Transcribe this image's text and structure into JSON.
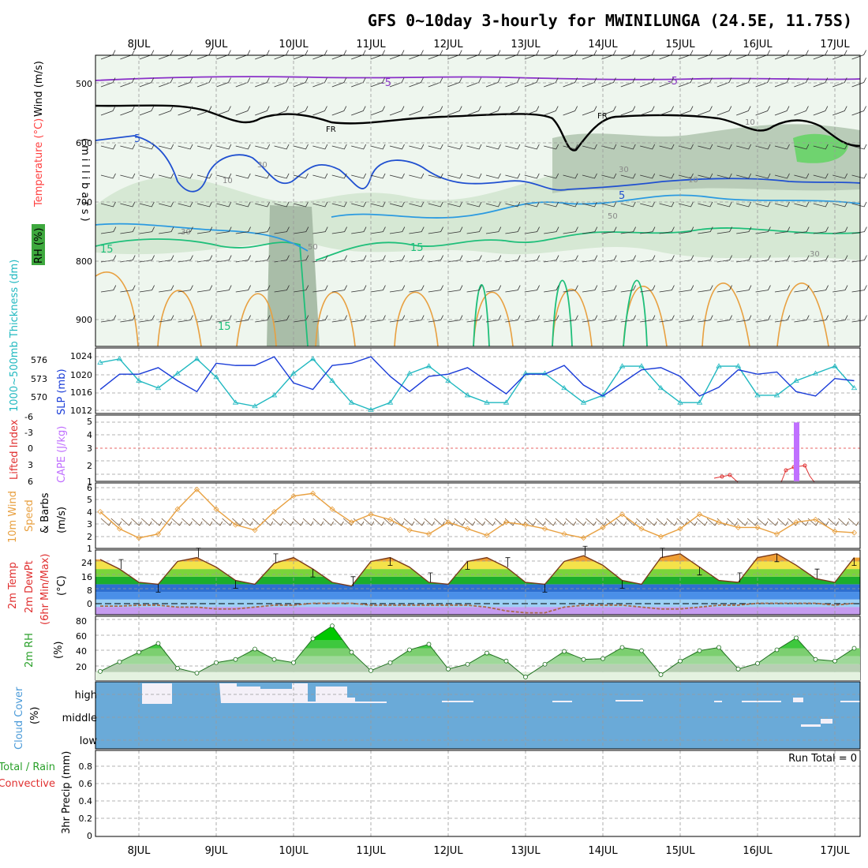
{
  "title": "GFS 0~10day 3-hourly for MWINILUNGA (24.5E, 11.75S)",
  "dates": [
    "8JUL",
    "9JUL",
    "10JUL",
    "11JUL",
    "12JUL",
    "13JUL",
    "14JUL",
    "15JUL",
    "16JUL",
    "17JUL"
  ],
  "colors": {
    "rh": "#3ea83e",
    "temperature": "#ff4040",
    "wind": "#000000",
    "slp": "#1a3cd8",
    "thickness": "#20b8c0",
    "cape": "#c070ff",
    "li": "#e03030",
    "wind10": "#e8a040",
    "rh2m": "#2aa02a",
    "cloud": "#6aaad8"
  },
  "panels": {
    "profile": {
      "ylabel_wind": "Wind (m/s)",
      "ylabel_temp": "Temperature (°C)",
      "ylabel_rh": "RH (%)",
      "ylabel_mb": "(millibars)",
      "yticks": [
        "500",
        "600",
        "700",
        "800",
        "900"
      ],
      "contour_labels": [
        "-5",
        "-5",
        "FR",
        "FR",
        "5",
        "5",
        "15",
        "15",
        "15",
        "30",
        "30",
        "10",
        "50",
        "10",
        "30",
        "30",
        "50",
        "10"
      ]
    },
    "slp": {
      "ylabel_thick": "1000~500mb Thickness (dm)",
      "ylabel_slp": "SLP (mb)",
      "thick_ticks": [
        "576",
        "573",
        "570"
      ],
      "slp_ticks": [
        "1024",
        "1020",
        "1016",
        "1012"
      ]
    },
    "cape": {
      "ylabel_li": "Lifted Index",
      "ylabel_cape": "CAPE (J/kg)",
      "li_ticks": [
        "-6",
        "-3",
        "0",
        "3",
        "6"
      ],
      "cape_ticks": [
        "5",
        "4",
        "3",
        "2",
        "1"
      ]
    },
    "wind10": {
      "ylabel1": "10m Wind",
      "ylabel2": "Speed",
      "ylabel3": "& Barbs",
      "unit": "(m/s)",
      "ticks": [
        "6",
        "5",
        "4",
        "3",
        "2",
        "1"
      ]
    },
    "temp2m": {
      "ylabel1": "2m Temp",
      "ylabel2": "2m DewPt",
      "ylabel3": "(6hr Min/Max)",
      "unit": "(°C)",
      "ticks": [
        "24",
        "16",
        "8",
        "0"
      ]
    },
    "rh2m": {
      "ylabel": "2m RH",
      "unit": "(%)",
      "ticks": [
        "80",
        "60",
        "40",
        "20"
      ]
    },
    "cloud": {
      "ylabel": "Cloud Cover",
      "unit": "(%)",
      "levels": [
        "high",
        "middle",
        "low"
      ]
    },
    "precip": {
      "ylabel1": "Total / Rain",
      "ylabel2": "Convective",
      "ylabel3": "3hr Precip (mm)",
      "ticks": [
        "0.8",
        "0.6",
        "0.4",
        "0.2",
        "0"
      ],
      "run_total": "Run Total = 0"
    }
  },
  "chart_data": [
    {
      "type": "line",
      "title": "GFS 0~10day 3-hourly for MWINILUNGA (24.5E, 11.75S)",
      "ylabel": "SLP (mb)",
      "ylim": [
        1011,
        1026
      ],
      "x_step_hours": 6,
      "series": [
        {
          "name": "SLP (mb)",
          "values": [
            1016.5,
            1020,
            1020,
            1021.5,
            1018.5,
            1016,
            1022.5,
            1022,
            1022,
            1024,
            1018,
            1016.5,
            1022,
            1022.5,
            1024,
            1019.5,
            1016,
            1019.5,
            1020,
            1021.5,
            1018.5,
            1015.5,
            1020,
            1020,
            1022,
            1017.5,
            1015,
            1018,
            1021,
            1021.5,
            1019.5,
            1015,
            1017,
            1021,
            1020,
            1020.5,
            1016,
            1015,
            1019,
            1018.5,
            1020,
            1015.5,
            1015,
            1018.5,
            1020,
            1020,
            1015,
            1013,
            1018,
            1018.5,
            1020
          ]
        }
      ]
    },
    {
      "type": "line",
      "ylabel": "1000~500mb Thickness (dm)",
      "ylim": [
        568.5,
        577.5
      ],
      "x_step_hours": 6,
      "series": [
        {
          "name": "1000~500mb Thickness (dm)",
          "values": [
            575.5,
            576,
            573,
            572,
            574,
            576,
            573.5,
            570,
            569.5,
            571,
            574,
            576,
            573,
            570,
            569,
            570,
            574,
            575,
            573,
            571,
            570,
            570,
            574,
            574,
            572,
            570,
            571,
            575,
            575,
            572,
            570,
            570,
            575,
            575,
            571,
            571,
            573,
            574,
            575,
            572,
            571,
            572,
            576,
            576,
            572,
            570,
            572,
            575,
            575,
            572,
            572
          ]
        }
      ]
    },
    {
      "type": "bar",
      "ylabel": "CAPE (J/kg)",
      "ylim": [
        1,
        5.5
      ],
      "categories": [
        "16JUL"
      ],
      "values": [
        5
      ]
    },
    {
      "type": "line",
      "ylabel": "10m Wind Speed & Barbs (m/s)",
      "ylim": [
        1,
        6
      ],
      "x_step_hours": 6,
      "series": [
        {
          "name": "10m Wind Speed (m/s)",
          "values": [
            3.8,
            2.5,
            1.8,
            2.1,
            4,
            5.5,
            4,
            2.8,
            2.4,
            3.8,
            5,
            5.2,
            4,
            3,
            3.6,
            3.2,
            2.4,
            2.1,
            3,
            2.5,
            2,
            3,
            2.8,
            2.5,
            2.1,
            1.8,
            2.6,
            3.6,
            2.5,
            1.9,
            2.5,
            3.6,
            3,
            2.6,
            2.6,
            2.1,
            3,
            3.2,
            2.3,
            2.2,
            1.9,
            2.2,
            3.3,
            2.7,
            1.7,
            2.2,
            3.1,
            2.6,
            1.5,
            1.8,
            2.7
          ]
        }
      ]
    },
    {
      "type": "area",
      "ylabel": "2m Temp (°C)",
      "ylim": [
        -4,
        30
      ],
      "x_step_hours": 6,
      "series": [
        {
          "name": "2m Temp (°C)",
          "values": [
            25,
            20,
            13,
            12,
            24,
            26,
            21,
            14,
            12,
            23,
            26,
            20,
            13,
            11,
            24,
            26,
            21,
            13,
            12,
            24,
            26,
            21,
            13,
            12,
            24,
            27,
            22,
            14,
            12,
            26,
            28,
            21,
            14,
            13,
            26,
            28,
            22,
            15,
            13,
            26,
            28,
            22,
            15,
            13,
            27,
            28,
            23,
            16,
            13,
            18,
            25
          ]
        },
        {
          "name": "2m DewPt (°C)",
          "values": [
            0.5,
            0.5,
            1,
            1,
            0,
            0,
            -1,
            -1,
            0,
            1,
            1,
            2,
            2,
            2,
            1,
            1,
            1,
            1,
            1,
            1,
            0,
            -2,
            -3,
            -3,
            0,
            1,
            1,
            1,
            0,
            -1,
            -1,
            0,
            1,
            1,
            2,
            2,
            2,
            2,
            1,
            2,
            3,
            3,
            3,
            4,
            5,
            5,
            5,
            4,
            4,
            3,
            3
          ]
        }
      ]
    },
    {
      "type": "area",
      "ylabel": "2m RH (%)",
      "ylim": [
        10,
        90
      ],
      "x_step_hours": 6,
      "series": [
        {
          "name": "2m RH (%)",
          "values": [
            21,
            33,
            45,
            56,
            25,
            19,
            32,
            36,
            49,
            36,
            32,
            62,
            78,
            45,
            22,
            32,
            48,
            55,
            24,
            30,
            44,
            34,
            14,
            30,
            46,
            36,
            37,
            51,
            47,
            17,
            34,
            47,
            51,
            24,
            31,
            48,
            63,
            36,
            34,
            50,
            57,
            22,
            32,
            50,
            48,
            23,
            44,
            56,
            35,
            34,
            47
          ]
        }
      ]
    },
    {
      "type": "bar",
      "ylabel": "3hr Precip (mm)",
      "ylim": [
        0,
        0.9
      ],
      "categories": [
        "8JUL",
        "9JUL",
        "10JUL",
        "11JUL",
        "12JUL",
        "13JUL",
        "14JUL",
        "15JUL",
        "16JUL",
        "17JUL"
      ],
      "values": [
        0,
        0,
        0,
        0,
        0,
        0,
        0,
        0,
        0,
        0
      ]
    }
  ]
}
